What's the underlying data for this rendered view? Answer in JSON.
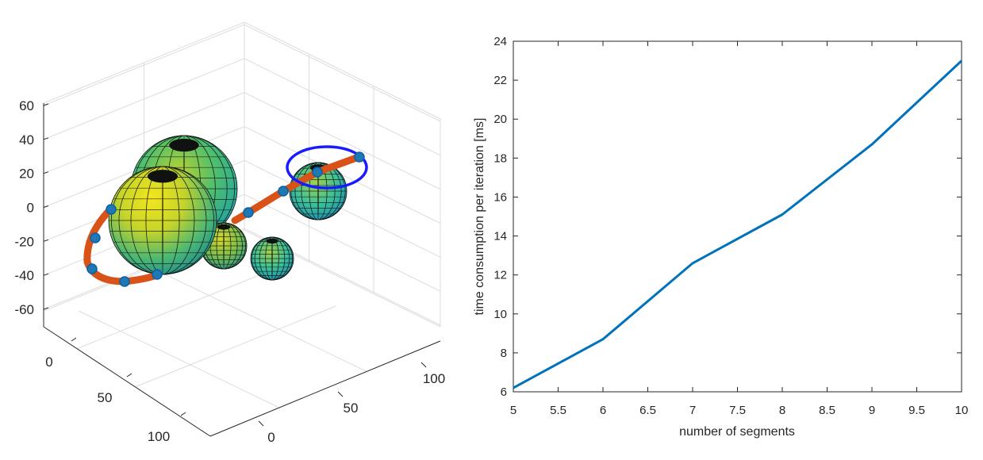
{
  "chart_data": [
    {
      "type": "surface3d",
      "title": "",
      "z_ticks": [
        "60",
        "40",
        "20",
        "0",
        "-20",
        "-40",
        "-60"
      ],
      "x_ticks": [
        "0",
        "50",
        "100"
      ],
      "y_ticks": [
        "0",
        "50",
        "100"
      ],
      "grid": true,
      "path_color": "#D95319",
      "waypoint_color": "#0072BD",
      "goal_circle_color": "#1a1aff"
    },
    {
      "type": "line",
      "title": "",
      "xlabel": "number of segments",
      "ylabel": "time consumption per iteration [ms]",
      "xlim": [
        5,
        10
      ],
      "ylim": [
        6,
        24
      ],
      "x_ticks": [
        5,
        5.5,
        6,
        6.5,
        7,
        7.5,
        8,
        8.5,
        9,
        9.5,
        10
      ],
      "y_ticks": [
        6,
        8,
        10,
        12,
        14,
        16,
        18,
        20,
        22,
        24
      ],
      "grid": false,
      "series": [
        {
          "color": "#0072BD",
          "x": [
            5,
            6,
            7,
            8,
            9,
            10
          ],
          "y": [
            6.2,
            8.7,
            12.6,
            15.1,
            18.7,
            23.0
          ]
        }
      ]
    }
  ]
}
